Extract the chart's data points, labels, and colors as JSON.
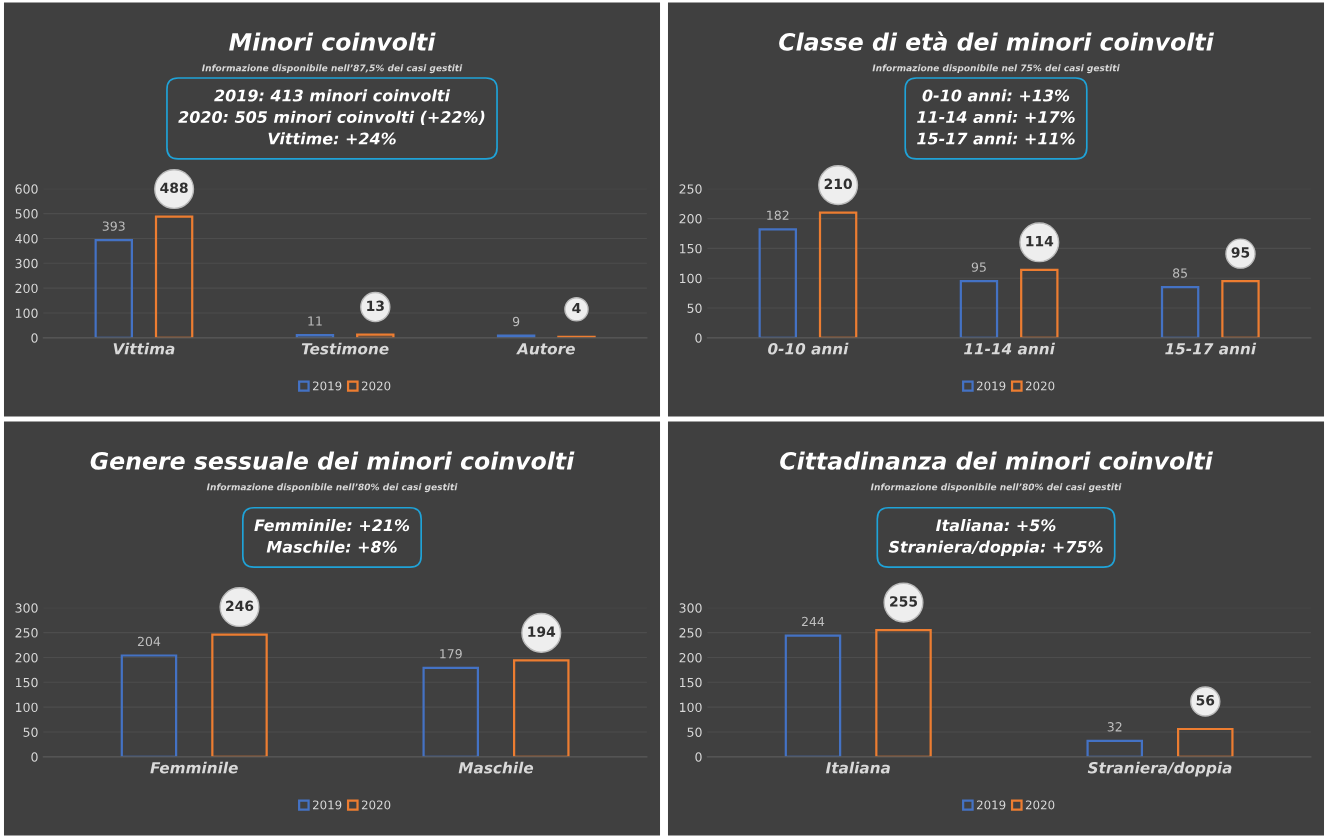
{
  "chart_data": [
    {
      "type": "bar",
      "title": "Minori coinvolti",
      "subtitle": "Informazione disponibile nell’87,5% dei casi gestiti",
      "annotations": [
        "2019: 413 minori coinvolti",
        "2020: 505 minori coinvolti (+22%)",
        "Vittime: +24%"
      ],
      "categories": [
        "Vittima",
        "Testimone",
        "Autore"
      ],
      "series": [
        {
          "name": "2019",
          "color": "#4472c4",
          "values": [
            393,
            11,
            9
          ]
        },
        {
          "name": "2020",
          "color": "#ed7d31",
          "values": [
            488,
            13,
            4
          ]
        }
      ],
      "ylim": [
        0,
        600
      ],
      "yticks": [
        0,
        100,
        200,
        300,
        400,
        500,
        600
      ],
      "grid": "y",
      "legend": "bottom",
      "data_labels": true
    },
    {
      "type": "bar",
      "title": "Classe di età dei minori coinvolti",
      "subtitle": "Informazione disponibile nel 75% dei casi gestiti",
      "annotations": [
        "0-10 anni: +13%",
        "11-14 anni: +17%",
        "15-17 anni: +11%"
      ],
      "categories": [
        "0-10 anni",
        "11-14 anni",
        "15-17 anni"
      ],
      "series": [
        {
          "name": "2019",
          "color": "#4472c4",
          "values": [
            182,
            95,
            85
          ]
        },
        {
          "name": "2020",
          "color": "#ed7d31",
          "values": [
            210,
            114,
            95
          ]
        }
      ],
      "ylim": [
        0,
        250
      ],
      "yticks": [
        0,
        50,
        100,
        150,
        200,
        250
      ],
      "grid": "y",
      "legend": "bottom",
      "data_labels": true
    },
    {
      "type": "bar",
      "title": "Genere sessuale dei minori coinvolti",
      "subtitle": "Informazione disponibile nell’80% dei casi gestiti",
      "annotations": [
        "Femminile: +21%",
        "Maschile: +8%"
      ],
      "categories": [
        "Femminile",
        "Maschile"
      ],
      "series": [
        {
          "name": "2019",
          "color": "#4472c4",
          "values": [
            204,
            179
          ]
        },
        {
          "name": "2020",
          "color": "#ed7d31",
          "values": [
            246,
            194
          ]
        }
      ],
      "ylim": [
        0,
        300
      ],
      "yticks": [
        0,
        50,
        100,
        150,
        200,
        250,
        300
      ],
      "grid": "y",
      "legend": "bottom",
      "data_labels": true
    },
    {
      "type": "bar",
      "title": "Cittadinanza dei minori coinvolti",
      "subtitle": "Informazione disponibile nell’80% dei casi gestiti",
      "annotations": [
        "Italiana: +5%",
        "Straniera/doppia: +75%"
      ],
      "categories": [
        "Italiana",
        "Straniera/doppia"
      ],
      "series": [
        {
          "name": "2019",
          "color": "#4472c4",
          "values": [
            244,
            32
          ]
        },
        {
          "name": "2020",
          "color": "#ed7d31",
          "values": [
            255,
            56
          ]
        }
      ],
      "ylim": [
        0,
        300
      ],
      "yticks": [
        0,
        50,
        100,
        150,
        200,
        250,
        300
      ],
      "grid": "y",
      "legend": "bottom",
      "data_labels": true
    }
  ]
}
